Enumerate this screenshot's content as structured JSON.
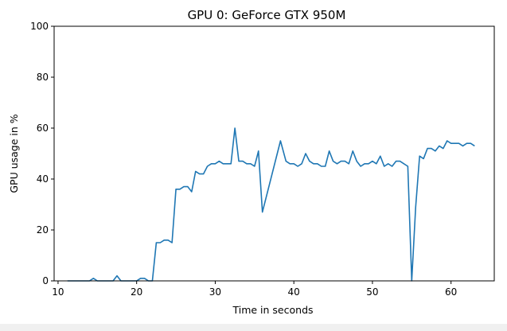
{
  "chart_data": {
    "type": "line",
    "title": "GPU 0: GeForce GTX 950M",
    "xlabel": "Time in seconds",
    "ylabel": "GPU usage in %",
    "xlim": [
      9.5,
      65.5
    ],
    "ylim": [
      0,
      100
    ],
    "xticks": [
      10,
      20,
      30,
      40,
      50,
      60
    ],
    "yticks": [
      0,
      20,
      40,
      60,
      80,
      100
    ],
    "grid": false,
    "line_color": "#1f77b4",
    "series": [
      {
        "x": [
          11.2,
          12.0,
          13.0,
          14.0,
          14.5,
          15.0,
          16.0,
          17.0,
          17.5,
          18.0,
          19.0,
          20.0,
          20.5,
          21.0,
          21.5,
          22.0,
          22.5,
          23.0,
          23.5,
          24.0,
          24.5,
          25.0,
          25.5,
          26.0,
          26.5,
          27.0,
          27.5,
          28.0,
          28.5,
          29.0,
          29.5,
          30.0,
          30.5,
          31.0,
          31.5,
          32.0,
          32.5,
          33.0,
          33.5,
          34.0,
          34.5,
          35.0,
          35.5,
          36.0,
          38.3,
          39.0,
          39.5,
          40.0,
          40.5,
          41.0,
          41.5,
          42.0,
          42.5,
          43.0,
          43.5,
          44.0,
          44.5,
          45.0,
          45.5,
          46.0,
          46.5,
          47.0,
          47.5,
          48.0,
          48.5,
          49.0,
          49.5,
          50.0,
          50.5,
          51.0,
          51.5,
          52.0,
          52.5,
          53.0,
          53.5,
          54.0,
          54.5,
          55.0,
          55.5,
          56.0,
          56.5,
          57.0,
          57.5,
          58.0,
          58.5,
          59.0,
          59.5,
          60.0,
          60.5,
          61.0,
          61.5,
          62.0,
          62.5,
          63.0
        ],
        "y": [
          0,
          0,
          0,
          0,
          1,
          0,
          0,
          0,
          2,
          0,
          0,
          0,
          1,
          1,
          0,
          0,
          15,
          15,
          16,
          16,
          15,
          36,
          36,
          37,
          37,
          35,
          43,
          42,
          42,
          45,
          46,
          46,
          47,
          46,
          46,
          46,
          60,
          47,
          47,
          46,
          46,
          45,
          51,
          27,
          55,
          47,
          46,
          46,
          45,
          46,
          50,
          47,
          46,
          46,
          45,
          45,
          51,
          47,
          46,
          47,
          47,
          46,
          51,
          47,
          45,
          46,
          46,
          47,
          46,
          49,
          45,
          46,
          45,
          47,
          47,
          46,
          45,
          0,
          29,
          49,
          48,
          52,
          52,
          51,
          53,
          52,
          55,
          54,
          54,
          54,
          53,
          54,
          54,
          53
        ]
      }
    ]
  }
}
